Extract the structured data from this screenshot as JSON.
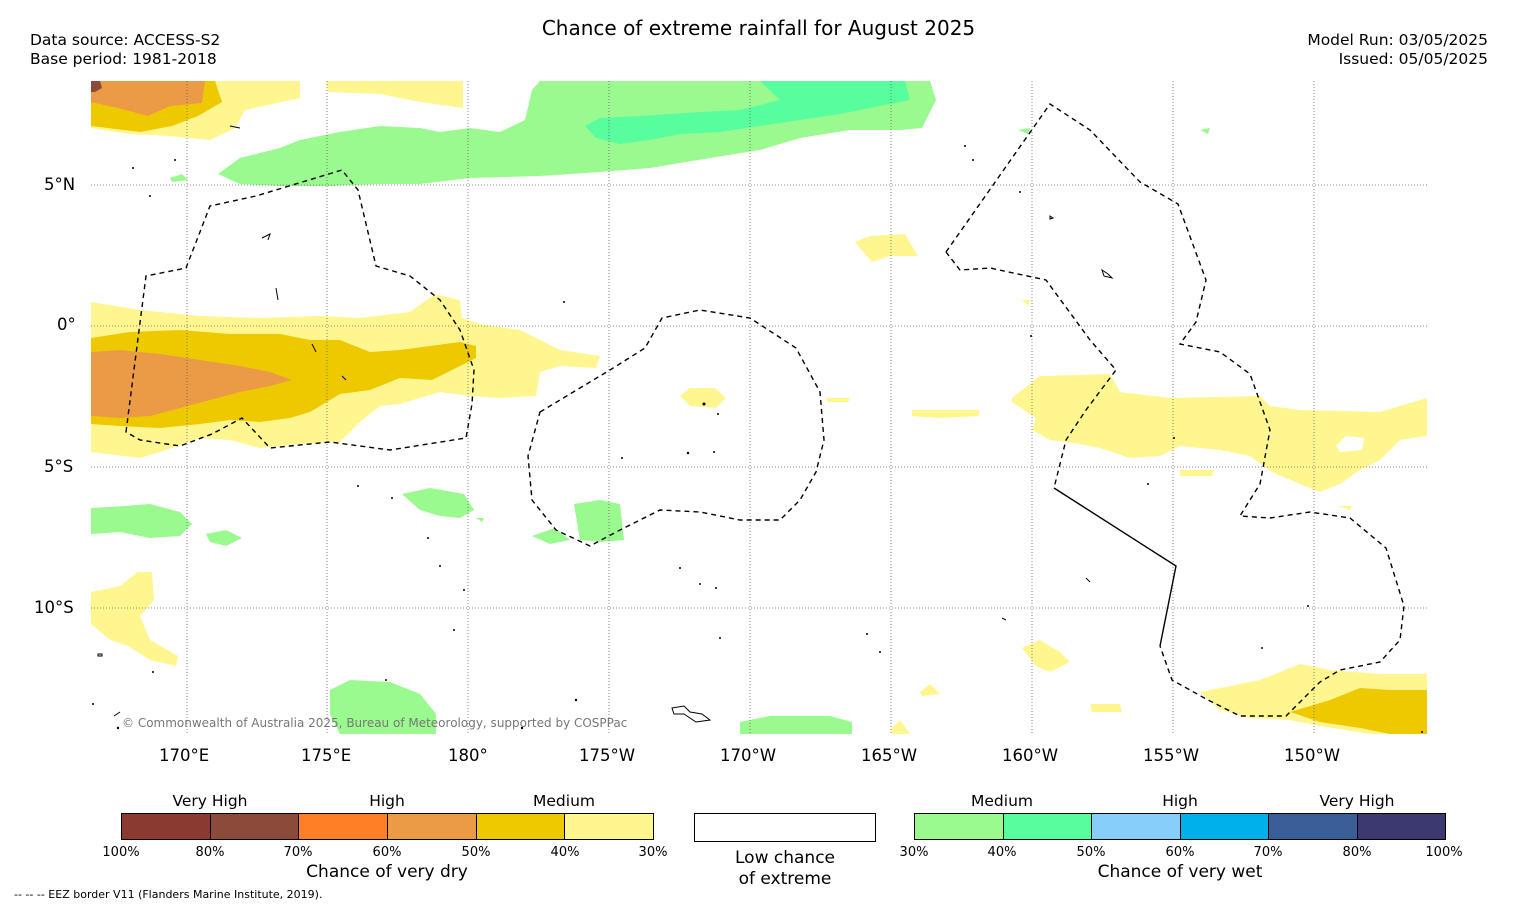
{
  "title": "Chance of extreme rainfall for August 2025",
  "data_source": "Data source: ACCESS-S2",
  "base_period": "Base period: 1981-2018",
  "model_run": "Model Run: 03/05/2025",
  "issued": "Issued: 05/05/2025",
  "map": {
    "lat_labels": [
      "5°N",
      "0°",
      "5°S",
      "10°S"
    ],
    "lon_labels": [
      "170°E",
      "175°E",
      "180°",
      "175°W",
      "170°W",
      "165°W",
      "160°W",
      "155°W",
      "150°W"
    ],
    "copyright": "© Commonwealth of Australia 2025, Bureau of Meteorology, supported by COSPPac"
  },
  "dry_scale": {
    "levels": [
      "Very High",
      "High",
      "Medium"
    ],
    "ticks": [
      "100%",
      "80%",
      "70%",
      "60%",
      "50%",
      "40%",
      "30%"
    ],
    "label": "Chance of very dry",
    "colors": [
      "#8b3a32",
      "#8b4a3a",
      "#ff7f27",
      "#eb9a46",
      "#eec900",
      "#fff68f"
    ]
  },
  "low_box": {
    "line1": "Low chance",
    "line2": "of extreme"
  },
  "wet_scale": {
    "levels": [
      "Medium",
      "High",
      "Very High"
    ],
    "ticks": [
      "30%",
      "40%",
      "50%",
      "60%",
      "70%",
      "80%",
      "100%"
    ],
    "label": "Chance of very wet",
    "colors": [
      "#9afa8f",
      "#58fe9e",
      "#87cefa",
      "#00b0eb",
      "#3a5f98",
      "#3c3870"
    ]
  },
  "eez_note": "-- -- -- EEZ border V11 (Flanders Marine Institute, 2019)."
}
